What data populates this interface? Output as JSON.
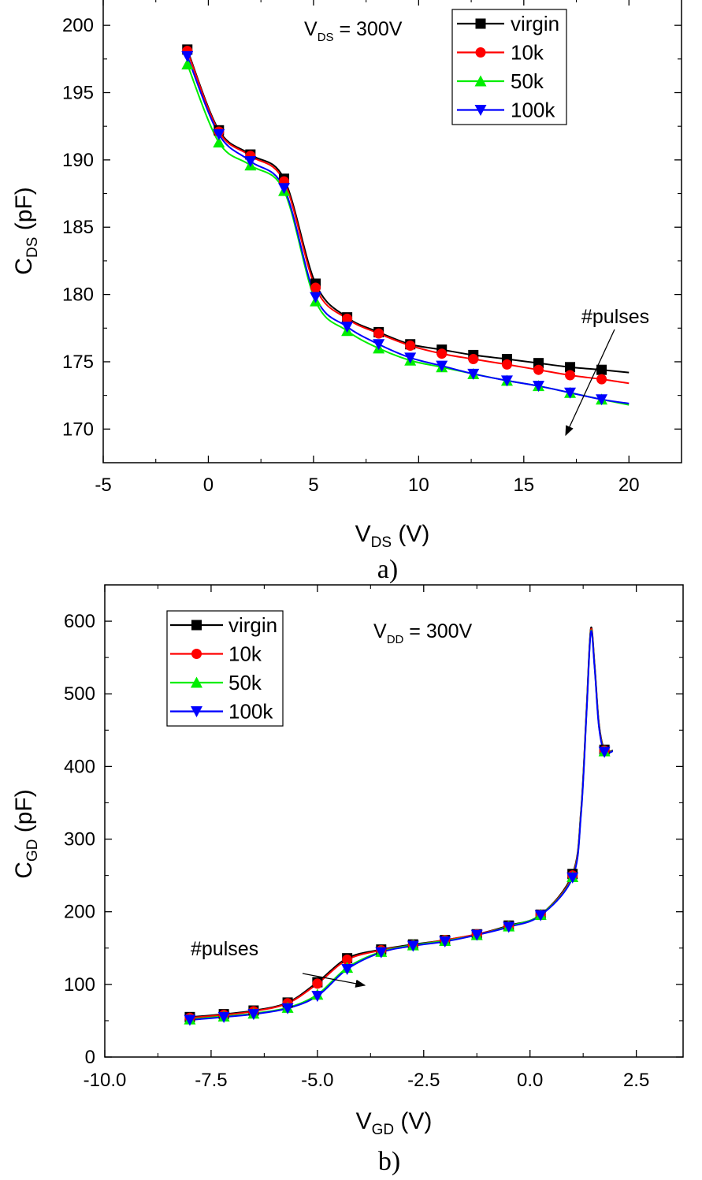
{
  "chart_data": [
    {
      "type": "line",
      "panel_label": "a)",
      "xlabel": {
        "main": "V",
        "sub": "DS",
        "unit": " (V)"
      },
      "ylabel": {
        "main": "C",
        "sub": "DS",
        "unit": " (pF)"
      },
      "xlim": [
        -5,
        22.5
      ],
      "ylim": [
        167.5,
        202
      ],
      "xticks": [
        -5,
        0,
        5,
        10,
        15,
        20
      ],
      "xtick_labels": [
        "-5",
        "0",
        "5",
        "10",
        "15",
        "20"
      ],
      "yticks": [
        170,
        175,
        180,
        185,
        190,
        195,
        200
      ],
      "ytick_labels": [
        "170",
        "175",
        "180",
        "185",
        "190",
        "195",
        "200"
      ],
      "annotations": [
        {
          "main": "V",
          "sub": "DS",
          "tail": " = 300V"
        },
        {
          "text": "#pulses"
        }
      ],
      "legend": {
        "position": "top-right"
      },
      "series": [
        {
          "name": "virgin",
          "color": "#000000",
          "marker": "square",
          "x": [
            -1,
            0.5,
            2,
            3.6,
            5.1,
            6.6,
            8.1,
            9.6,
            11.1,
            12.6,
            14.2,
            15.7,
            17.2,
            18.7
          ],
          "y": [
            198.2,
            192.2,
            190.4,
            188.6,
            180.8,
            178.3,
            177.2,
            176.3,
            175.9,
            175.5,
            175.2,
            174.9,
            174.6,
            174.4
          ],
          "end": [
            20,
            174.2
          ]
        },
        {
          "name": "10k",
          "color": "#ff0000",
          "marker": "circle",
          "x": [
            -1,
            0.5,
            2,
            3.6,
            5.1,
            6.6,
            8.1,
            9.6,
            11.1,
            12.6,
            14.2,
            15.7,
            17.2,
            18.7
          ],
          "y": [
            198.1,
            192.1,
            190.3,
            188.4,
            180.5,
            178.2,
            177.1,
            176.2,
            175.6,
            175.2,
            174.8,
            174.4,
            174.0,
            173.7
          ],
          "end": [
            20,
            173.4
          ]
        },
        {
          "name": "50k",
          "color": "#00ee00",
          "marker": "triangle-up",
          "x": [
            -1,
            0.5,
            2,
            3.6,
            5.1,
            6.6,
            8.1,
            9.6,
            11.1,
            12.6,
            14.2,
            15.7,
            17.2,
            18.7
          ],
          "y": [
            197.1,
            191.3,
            189.6,
            187.7,
            179.5,
            177.3,
            176.0,
            175.1,
            174.6,
            174.1,
            173.6,
            173.2,
            172.7,
            172.2
          ],
          "end": [
            20,
            171.8
          ]
        },
        {
          "name": "100k",
          "color": "#0000ff",
          "marker": "triangle-down",
          "x": [
            -1,
            0.5,
            2,
            3.6,
            5.1,
            6.6,
            8.1,
            9.6,
            11.1,
            12.6,
            14.2,
            15.7,
            17.2,
            18.7
          ],
          "y": [
            197.7,
            191.9,
            189.9,
            187.9,
            179.8,
            177.6,
            176.3,
            175.3,
            174.7,
            174.1,
            173.6,
            173.2,
            172.7,
            172.2
          ],
          "end": [
            20,
            171.9
          ]
        }
      ]
    },
    {
      "type": "line",
      "panel_label": "b)",
      "xlabel": {
        "main": "V",
        "sub": "GD",
        "unit": " (V)"
      },
      "ylabel": {
        "main": "C",
        "sub": "GD",
        "unit": " (pF)"
      },
      "xlim": [
        -10,
        3.6
      ],
      "ylim": [
        0,
        650
      ],
      "xticks": [
        -10,
        -7.5,
        -5,
        -2.5,
        0,
        2.5
      ],
      "xtick_labels": [
        "-10.0",
        "-7.5",
        "-5.0",
        "-2.5",
        "0.0",
        "2.5"
      ],
      "yticks": [
        0,
        100,
        200,
        300,
        400,
        500,
        600
      ],
      "ytick_labels": [
        "0",
        "100",
        "200",
        "300",
        "400",
        "500",
        "600"
      ],
      "annotations": [
        {
          "main": "V",
          "sub": "DD",
          "tail": " = 300V"
        },
        {
          "text": "#pulses"
        }
      ],
      "legend": {
        "position": "top-left"
      },
      "series": [
        {
          "name": "virgin",
          "color": "#000000",
          "marker": "square",
          "x": [
            -8,
            -7.2,
            -6.5,
            -5.7,
            -5.0,
            -4.3,
            -3.5,
            -2.75,
            -2.0,
            -1.25,
            -0.5,
            0.25,
            1.0,
            1.75
          ],
          "y": [
            55,
            59,
            64,
            75,
            103,
            136,
            148,
            155,
            161,
            169,
            181,
            196,
            252,
            423
          ],
          "curve": [
            [
              -8,
              55
            ],
            [
              -7.2,
              59
            ],
            [
              -6.5,
              64
            ],
            [
              -5.7,
              75
            ],
            [
              -5.0,
              103
            ],
            [
              -4.3,
              136
            ],
            [
              -3.5,
              148
            ],
            [
              -2.75,
              155
            ],
            [
              -2.0,
              161
            ],
            [
              -1.25,
              169
            ],
            [
              -0.5,
              181
            ],
            [
              0.25,
              196
            ],
            [
              1.0,
              252
            ],
            [
              1.2,
              340
            ],
            [
              1.33,
              480
            ],
            [
              1.43,
              590
            ],
            [
              1.52,
              540
            ],
            [
              1.62,
              460
            ],
            [
              1.75,
              423
            ],
            [
              1.95,
              422
            ]
          ]
        },
        {
          "name": "10k",
          "color": "#ff0000",
          "marker": "circle",
          "x": [
            -8,
            -7.2,
            -6.5,
            -5.7,
            -5.0,
            -4.3,
            -3.5,
            -2.75,
            -2.0,
            -1.25,
            -0.5,
            0.25,
            1.0,
            1.75
          ],
          "y": [
            54,
            58,
            63,
            74,
            101,
            134,
            147,
            154,
            161,
            169,
            180,
            196,
            250,
            422
          ],
          "curve": [
            [
              -8,
              54
            ],
            [
              -7.2,
              58
            ],
            [
              -6.5,
              63
            ],
            [
              -5.7,
              74
            ],
            [
              -5.0,
              101
            ],
            [
              -4.3,
              134
            ],
            [
              -3.5,
              147
            ],
            [
              -2.75,
              154
            ],
            [
              -2.0,
              161
            ],
            [
              -1.25,
              169
            ],
            [
              -0.5,
              180
            ],
            [
              0.25,
              196
            ],
            [
              1.0,
              250
            ],
            [
              1.2,
              338
            ],
            [
              1.33,
              478
            ],
            [
              1.43,
              588
            ],
            [
              1.52,
              538
            ],
            [
              1.62,
              458
            ],
            [
              1.75,
              422
            ],
            [
              1.95,
              421
            ]
          ]
        },
        {
          "name": "50k",
          "color": "#00ee00",
          "marker": "triangle-up",
          "x": [
            -8,
            -7.2,
            -6.5,
            -5.7,
            -5.0,
            -4.3,
            -3.5,
            -2.75,
            -2.0,
            -1.25,
            -0.5,
            0.25,
            1.0,
            1.75
          ],
          "y": [
            52,
            56,
            60,
            68,
            86,
            123,
            145,
            154,
            160,
            168,
            180,
            196,
            248,
            421
          ],
          "curve": [
            [
              -8,
              52
            ],
            [
              -7.2,
              56
            ],
            [
              -6.5,
              60
            ],
            [
              -5.7,
              68
            ],
            [
              -5.0,
              86
            ],
            [
              -4.3,
              123
            ],
            [
              -3.5,
              145
            ],
            [
              -2.75,
              154
            ],
            [
              -2.0,
              160
            ],
            [
              -1.25,
              168
            ],
            [
              -0.5,
              180
            ],
            [
              0.25,
              196
            ],
            [
              1.0,
              248
            ],
            [
              1.2,
              336
            ],
            [
              1.33,
              476
            ],
            [
              1.43,
              586
            ],
            [
              1.52,
              536
            ],
            [
              1.62,
              456
            ],
            [
              1.75,
              421
            ],
            [
              1.95,
              421
            ]
          ]
        },
        {
          "name": "100k",
          "color": "#0000ff",
          "marker": "triangle-down",
          "x": [
            -8,
            -7.2,
            -6.5,
            -5.7,
            -5.0,
            -4.3,
            -3.5,
            -2.75,
            -2.0,
            -1.25,
            -0.5,
            0.25,
            1.0,
            1.75
          ],
          "y": [
            51,
            55,
            59,
            67,
            84,
            121,
            144,
            153,
            159,
            168,
            179,
            195,
            247,
            420
          ],
          "curve": [
            [
              -8,
              51
            ],
            [
              -7.2,
              55
            ],
            [
              -6.5,
              59
            ],
            [
              -5.7,
              67
            ],
            [
              -5.0,
              84
            ],
            [
              -4.3,
              121
            ],
            [
              -3.5,
              144
            ],
            [
              -2.75,
              153
            ],
            [
              -2.0,
              159
            ],
            [
              -1.25,
              168
            ],
            [
              -0.5,
              179
            ],
            [
              0.25,
              195
            ],
            [
              1.0,
              247
            ],
            [
              1.2,
              334
            ],
            [
              1.33,
              474
            ],
            [
              1.43,
              585
            ],
            [
              1.52,
              535
            ],
            [
              1.62,
              455
            ],
            [
              1.75,
              420
            ],
            [
              1.95,
              421
            ]
          ]
        }
      ]
    }
  ]
}
